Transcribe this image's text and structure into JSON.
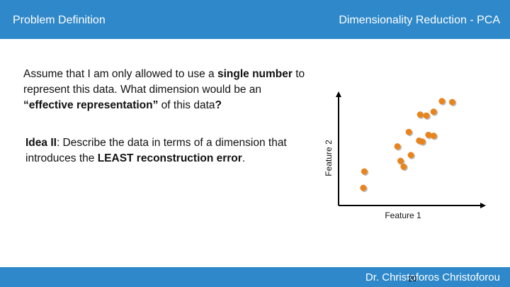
{
  "header": {
    "left_title": "Problem Definition",
    "right_title": "Dimensionality Reduction - PCA"
  },
  "body": {
    "para1_a": "Assume that I am only allowed to use a ",
    "para1_b": "single number",
    "para1_c": " to represent this data. What dimension would be an ",
    "para1_d": "“effective representation”",
    "para1_e": " of this data",
    "para1_f": "?",
    "para2_a": "Idea II",
    "para2_b": ": Describe the data in terms of a dimension that introduces the ",
    "para2_c": "LEAST reconstruction error",
    "para2_d": "."
  },
  "footer": {
    "author": "Dr. Christoforos Christoforou",
    "slide_number": "20",
    "slide_number_overlay": "20"
  },
  "colors": {
    "accent": "#2e88c9",
    "point": "#e8841e"
  },
  "chart_data": {
    "type": "scatter",
    "xlabel": "Feature 1",
    "ylabel": "Feature 2",
    "xlim": [
      0,
      10
    ],
    "ylim": [
      0,
      10
    ],
    "grid": false,
    "legend": "none",
    "series": [
      {
        "x": [
          0.2,
          0.3,
          3.8,
          4.1,
          3.5,
          4.8,
          5.6,
          5.9,
          4.6,
          5.7,
          6.5,
          6.3,
          7.0,
          7.0,
          7.8,
          8.8
        ],
        "y": [
          0.8,
          2.5,
          3.6,
          3.0,
          5.1,
          4.2,
          5.7,
          5.6,
          6.6,
          8.4,
          6.3,
          8.3,
          8.7,
          6.2,
          9.8,
          9.7
        ]
      }
    ]
  }
}
